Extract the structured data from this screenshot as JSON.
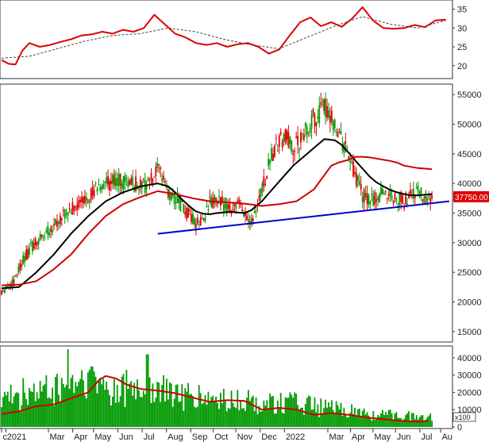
{
  "chart_data": [
    {
      "panel": "relative-strength",
      "type": "line",
      "ylim": [
        17,
        37
      ],
      "yticks": [
        "20",
        "25",
        "30",
        "35"
      ],
      "series": [
        {
          "color": "#dd0000",
          "style": "solid",
          "x": [
            0,
            2,
            4,
            6,
            8,
            11,
            14,
            17,
            20,
            23,
            26,
            29,
            32,
            35,
            38,
            41,
            44,
            47,
            50,
            53,
            56,
            59,
            62,
            65,
            68,
            71,
            74,
            77,
            80,
            83,
            86,
            89,
            92,
            95,
            98,
            101,
            104,
            107,
            110,
            113,
            116,
            119,
            122,
            125,
            128
          ],
          "values": [
            21.5,
            20.5,
            20.3,
            24,
            26,
            25,
            25.5,
            26.3,
            27,
            28,
            28.3,
            29,
            28.5,
            29.5,
            29,
            30,
            33.5,
            31,
            28.5,
            27.5,
            26,
            25.5,
            26,
            25,
            25.7,
            26,
            25,
            23.2,
            24.3,
            28,
            31.5,
            32.8,
            30.5,
            31.5,
            30.3,
            32.5,
            35.5,
            32,
            30,
            29.8,
            30,
            30.8,
            30.2,
            32,
            32.2
          ]
        },
        {
          "color": "#444444",
          "style": "dashed",
          "x": [
            0,
            8,
            16,
            24,
            32,
            40,
            48,
            56,
            64,
            72,
            80,
            88,
            96,
            104,
            112,
            120,
            128
          ],
          "values": [
            22,
            22.5,
            24.5,
            26.5,
            28,
            28.5,
            30,
            29,
            27,
            25.5,
            24.5,
            27.5,
            30.5,
            33,
            31,
            30,
            32
          ]
        }
      ]
    },
    {
      "panel": "price",
      "type": "candlestick",
      "ylim": [
        13500,
        56500
      ],
      "yticks": [
        "15000",
        "20000",
        "25000",
        "30000",
        "35000",
        "40000",
        "45000",
        "50000",
        "55000"
      ],
      "last_price_label": "37750.00",
      "last_price": 37750,
      "up_color": "#009900",
      "down_color": "#dd0000",
      "x_domain": [
        0,
        129
      ],
      "x_labels": [
        {
          "text": "c",
          "x": 0
        },
        {
          "text": "2021",
          "x": 1.2
        },
        {
          "text": "Mar",
          "x": 13.5
        },
        {
          "text": "Apr",
          "x": 20.5
        },
        {
          "text": "May",
          "x": 26.5
        },
        {
          "text": "Jun",
          "x": 33.5
        },
        {
          "text": "Jul",
          "x": 40.5
        },
        {
          "text": "Aug",
          "x": 47.5
        },
        {
          "text": "Sep",
          "x": 54.5
        },
        {
          "text": "Oct",
          "x": 61
        },
        {
          "text": "Nov",
          "x": 67.5
        },
        {
          "text": "Dec",
          "x": 74.5
        },
        {
          "text": "2022",
          "x": 81.5
        },
        {
          "text": "Mar",
          "x": 94
        },
        {
          "text": "Apr",
          "x": 100.5
        },
        {
          "text": "May",
          "x": 107
        },
        {
          "text": "Jun",
          "x": 113.5
        },
        {
          "text": "Jul",
          "x": 120.5
        },
        {
          "text": "Au",
          "x": 126.5
        }
      ],
      "close_path": {
        "x": [
          0,
          3,
          6,
          9,
          12,
          15,
          18,
          21,
          24,
          27,
          30,
          33,
          36,
          39,
          42,
          45,
          47,
          48,
          50,
          52,
          54,
          56,
          58,
          60,
          62,
          64,
          66,
          68,
          70,
          72,
          74,
          76,
          78,
          80,
          82,
          84,
          86,
          88,
          90,
          92,
          94,
          96,
          98,
          100,
          102,
          104,
          106,
          108,
          110,
          112,
          114,
          116,
          118,
          120,
          122,
          124
        ],
        "values": [
          22000,
          23000,
          27000,
          29500,
          31000,
          33000,
          34500,
          36000,
          37500,
          39000,
          39800,
          40500,
          40000,
          40000,
          39500,
          42000,
          41000,
          38000,
          37500,
          36000,
          34500,
          33000,
          34000,
          36500,
          37000,
          36500,
          36000,
          36500,
          35000,
          34000,
          37000,
          41000,
          45000,
          47000,
          48000,
          46000,
          47000,
          49000,
          51000,
          52000,
          53000,
          50000,
          47000,
          45000,
          41000,
          38000,
          37000,
          37500,
          38500,
          38000,
          37500,
          37000,
          38000,
          38500,
          37500,
          37750
        ]
      },
      "series": [
        {
          "color": "#000000",
          "x": [
            0,
            5,
            10,
            15,
            20,
            25,
            30,
            35,
            40,
            45,
            48,
            50,
            52,
            54,
            56,
            58,
            60,
            62,
            64,
            66,
            68,
            70,
            72,
            75,
            78,
            81,
            84,
            87,
            90,
            93,
            96,
            98,
            100,
            102,
            104,
            106,
            108,
            110,
            112,
            114,
            116,
            118,
            120,
            122,
            124
          ],
          "values": [
            22300,
            22500,
            25000,
            28000,
            31500,
            34500,
            37000,
            38500,
            39500,
            40000,
            39500,
            38500,
            37300,
            36200,
            35300,
            34900,
            34800,
            35000,
            35100,
            35200,
            35100,
            35000,
            35500,
            37000,
            39000,
            41000,
            43000,
            44500,
            46000,
            47500,
            47300,
            46500,
            45200,
            43800,
            42500,
            41200,
            40200,
            39500,
            38900,
            38500,
            38200,
            38000,
            38000,
            38100,
            38200
          ]
        },
        {
          "color": "#cc0000",
          "x": [
            0,
            5,
            10,
            15,
            20,
            25,
            30,
            35,
            40,
            45,
            50,
            55,
            60,
            65,
            70,
            75,
            80,
            85,
            90,
            95,
            97,
            100,
            102,
            104,
            106,
            108,
            110,
            112,
            114,
            116,
            118,
            120,
            122,
            124
          ],
          "values": [
            22800,
            22900,
            23500,
            25500,
            28000,
            31500,
            34500,
            36500,
            37700,
            38700,
            38200,
            37500,
            37000,
            36800,
            36600,
            36200,
            36500,
            37000,
            39000,
            43000,
            43500,
            44000,
            44500,
            44500,
            44400,
            44200,
            44000,
            43800,
            43500,
            43000,
            42800,
            42600,
            42500,
            42400
          ]
        },
        {
          "color": "#0000cc",
          "x": [
            45,
            129
          ],
          "values": [
            31500,
            37000
          ]
        }
      ]
    },
    {
      "panel": "volume",
      "type": "bar",
      "ylim": [
        0,
        45000
      ],
      "unit_label": "x100",
      "yticks": [
        "0",
        "10000",
        "20000",
        "30000",
        "40000"
      ],
      "bar_color": "#009900",
      "volume_envelope": {
        "x": [
          0,
          6,
          12,
          18,
          24,
          30,
          36,
          42,
          48,
          54,
          60,
          66,
          72,
          78,
          84,
          90,
          96,
          102,
          108,
          114,
          120,
          126
        ],
        "values": [
          16000,
          21000,
          22000,
          24000,
          30000,
          25000,
          23000,
          23000,
          22000,
          19000,
          17000,
          16500,
          16000,
          15500,
          15500,
          13000,
          11500,
          9500,
          7500,
          7500,
          7000,
          6000
        ]
      },
      "spikes": [
        {
          "x": 19,
          "value": 45000
        },
        {
          "x": 42,
          "value": 42000
        },
        {
          "x": 26,
          "value": 35000
        },
        {
          "x": 36,
          "value": 33000
        }
      ],
      "series": [
        {
          "color": "#cc0000",
          "x": [
            0,
            5,
            10,
            15,
            20,
            25,
            28,
            30,
            33,
            36,
            40,
            45,
            50,
            55,
            60,
            65,
            70,
            75,
            80,
            85,
            90,
            95,
            100,
            105,
            110,
            115,
            120,
            123
          ],
          "values": [
            7500,
            9000,
            12000,
            13000,
            16500,
            20000,
            27000,
            29500,
            28000,
            24500,
            22000,
            21000,
            19500,
            17000,
            14500,
            15500,
            15000,
            10000,
            11000,
            10000,
            7000,
            8000,
            7000,
            5500,
            4500,
            3500,
            3000,
            3500
          ]
        }
      ]
    }
  ]
}
